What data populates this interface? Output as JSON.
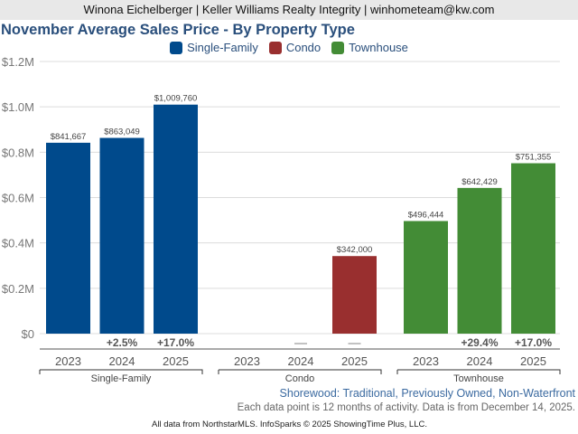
{
  "header": {
    "agent_line": "Winona Eichelberger | Keller Williams Realty Integrity | winhometeam@kw.com"
  },
  "chart_data": {
    "type": "bar",
    "title": "November Average Sales Price - By Property Type",
    "xlabel": "",
    "ylabel": "",
    "ylim": [
      0,
      1200000
    ],
    "yticks": [
      0,
      200000,
      400000,
      600000,
      800000,
      1000000,
      1200000
    ],
    "ytick_labels": [
      "$0",
      "$0.2M",
      "$0.4M",
      "$0.6M",
      "$0.8M",
      "$1.0M",
      "$1.2M"
    ],
    "grid": true,
    "legend_position": "top-center",
    "legend": [
      {
        "name": "Single-Family",
        "color": "#004a8c"
      },
      {
        "name": "Condo",
        "color": "#992f2f"
      },
      {
        "name": "Townhouse",
        "color": "#438c36"
      }
    ],
    "groups": [
      {
        "name": "Single-Family",
        "color": "#004a8c",
        "bars": [
          {
            "year": "2023",
            "value": 841667,
            "label": "$841,667",
            "change": ""
          },
          {
            "year": "2024",
            "value": 863049,
            "label": "$863,049",
            "change": "+2.5%"
          },
          {
            "year": "2025",
            "value": 1009760,
            "label": "$1,009,760",
            "change": "+17.0%"
          }
        ]
      },
      {
        "name": "Condo",
        "color": "#992f2f",
        "bars": [
          {
            "year": "2023",
            "value": null,
            "label": "",
            "change": ""
          },
          {
            "year": "2024",
            "value": null,
            "label": "",
            "change": "—"
          },
          {
            "year": "2025",
            "value": 342000,
            "label": "$342,000",
            "change": "—"
          }
        ]
      },
      {
        "name": "Townhouse",
        "color": "#438c36",
        "bars": [
          {
            "year": "2023",
            "value": 496444,
            "label": "$496,444",
            "change": ""
          },
          {
            "year": "2024",
            "value": 642429,
            "label": "$642,429",
            "change": "+29.4%"
          },
          {
            "year": "2025",
            "value": 751355,
            "label": "$751,355",
            "change": "+17.0%"
          }
        ]
      }
    ]
  },
  "notes": {
    "area": "Shorewood: Traditional, Previously Owned, Non-Waterfront",
    "data_note": "Each data point is 12 months of activity. Data is from December 14, 2025.",
    "footer": "All data from NorthstarMLS. InfoSparks © 2025 ShowingTime Plus, LLC."
  }
}
